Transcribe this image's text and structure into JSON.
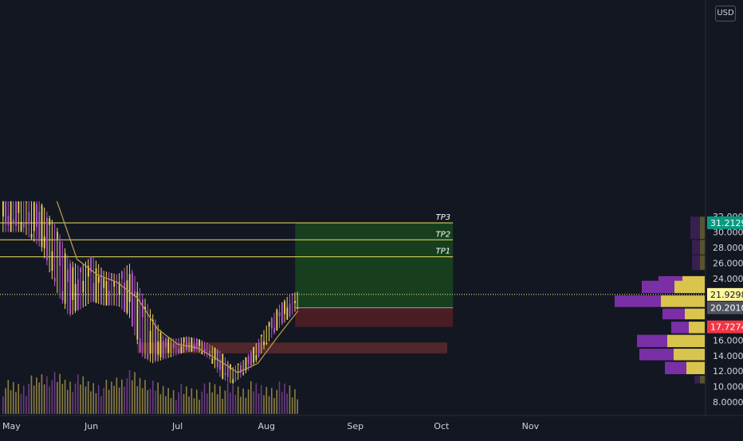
{
  "chart_data": {
    "type": "candlestick",
    "title": "",
    "price_axis": {
      "unit": "USD",
      "range": [
        7.0,
        34.0
      ],
      "ticks": [
        "8.0000",
        "10.0000",
        "12.0000",
        "14.0000",
        "16.0000",
        "18.0000",
        "20.0000",
        "22.0000",
        "24.0000",
        "26.0000",
        "28.0000",
        "30.0000",
        "32.0000"
      ]
    },
    "time_axis": {
      "labels": [
        "May",
        "Jun",
        "Jul",
        "Aug",
        "Sep",
        "Oct",
        "Nov"
      ],
      "label_dates": [
        "2021-05-01",
        "2021-06-01",
        "2021-07-01",
        "2021-08-01",
        "2021-09-01",
        "2021-10-01",
        "2021-11-01"
      ]
    },
    "price_badges": [
      {
        "value": "31.2129",
        "color": "#089981",
        "text_color": "#ffffff"
      },
      {
        "value": "21.9298",
        "color": "#fff59d",
        "text_color": "#131722"
      },
      {
        "value": "20.2010",
        "color": "#50535e",
        "text_color": "#ffffff"
      },
      {
        "value": "17.7274",
        "color": "#f23645",
        "text_color": "#ffffff"
      }
    ],
    "take_profit_lines": [
      {
        "label": "TP1",
        "price": 26.8
      },
      {
        "label": "TP2",
        "price": 29.0
      },
      {
        "label": "TP3",
        "price": 31.2
      }
    ],
    "position": {
      "entry": 20.2,
      "target": 31.2,
      "stop": 17.73,
      "start_date": "2021-08-11",
      "end_date": "2021-10-05"
    },
    "demand_zone": {
      "low": 14.3,
      "high": 15.7,
      "start_date": "2021-06-17",
      "end_date": "2021-10-03"
    },
    "current_price": 21.93,
    "price_series": {
      "dates": [
        "2021-05-02",
        "2021-05-08",
        "2021-05-14",
        "2021-05-20",
        "2021-05-24",
        "2021-05-28",
        "2021-06-01",
        "2021-06-05",
        "2021-06-10",
        "2021-06-14",
        "2021-06-18",
        "2021-06-22",
        "2021-06-26",
        "2021-06-30",
        "2021-07-04",
        "2021-07-08",
        "2021-07-12",
        "2021-07-16",
        "2021-07-20",
        "2021-07-24",
        "2021-07-28",
        "2021-08-01",
        "2021-08-05",
        "2021-08-09",
        "2021-08-12"
      ],
      "highs": [
        34,
        34,
        34,
        30.5,
        26.5,
        25.5,
        27,
        25,
        24.5,
        26,
        22.5,
        19.5,
        16.5,
        16.2,
        16.5,
        16.2,
        15.5,
        14.5,
        12.5,
        13.5,
        15.5,
        18,
        20.5,
        22,
        22.3
      ],
      "lows": [
        30,
        30,
        28,
        22,
        19,
        20,
        21,
        20.5,
        20.5,
        19,
        14,
        13,
        13.5,
        14,
        14.5,
        14.5,
        13.5,
        11,
        10.3,
        11.5,
        13,
        15.5,
        17.5,
        19,
        20.2
      ],
      "closes": [
        32,
        32,
        30,
        24,
        22,
        22.5,
        24,
        22,
        22,
        22,
        16,
        15,
        15,
        15.5,
        15.5,
        15.2,
        14.5,
        12,
        11.5,
        13,
        15,
        17.5,
        19.5,
        21,
        21.9
      ]
    },
    "moving_average": {
      "dates": [
        "2021-05-20",
        "2021-05-27",
        "2021-06-03",
        "2021-06-10",
        "2021-06-17",
        "2021-06-24",
        "2021-07-01",
        "2021-07-08",
        "2021-07-15",
        "2021-07-22",
        "2021-07-29",
        "2021-08-05",
        "2021-08-12"
      ],
      "values": [
        34,
        26.5,
        24.5,
        23.5,
        21.5,
        17.5,
        15.5,
        15.0,
        13.5,
        11.8,
        13.0,
        16.5,
        19.8
      ]
    },
    "volume_profile": [
      {
        "price_low": 24.3,
        "price_high": 23.0,
        "up": 0.28,
        "down": 0.3
      },
      {
        "price_low": 22.0,
        "price_high": 23.7,
        "up": 0.38,
        "down": 0.41
      },
      {
        "price_low": 20.2,
        "price_high": 21.8,
        "up": 0.55,
        "down": 0.58
      },
      {
        "price_low": 18.6,
        "price_high": 20.1,
        "up": 0.25,
        "down": 0.28
      },
      {
        "price_low": 16.8,
        "price_high": 18.4,
        "up": 0.2,
        "down": 0.22
      },
      {
        "price_low": 15.0,
        "price_high": 16.7,
        "up": 0.47,
        "down": 0.38
      },
      {
        "price_low": 13.3,
        "price_high": 14.9,
        "up": 0.39,
        "down": 0.43
      },
      {
        "price_low": 11.5,
        "price_high": 13.2,
        "up": 0.23,
        "down": 0.27
      },
      {
        "price_low": 10.3,
        "price_high": 11.4,
        "up": 0.06,
        "down": 0.07
      },
      {
        "price_low": 25.0,
        "price_high": 27.0,
        "up": 0.06,
        "down": 0.1
      },
      {
        "price_low": 27.0,
        "price_high": 29.0,
        "up": 0.06,
        "down": 0.1
      },
      {
        "price_low": 29.0,
        "price_high": 32.0,
        "up": 0.06,
        "down": 0.12
      }
    ],
    "colors": {
      "background": "#131722",
      "candle_up": "#f0d55a",
      "candle_down": "#b85ad0",
      "ma": "#c2a047",
      "tp_line": "#e9e25f",
      "profit_zone": "#173f1e",
      "loss_zone": "#4a1c24",
      "demand_zone": "#5c2a2d",
      "profile_up": "#d9c44d",
      "profile_down": "#7b2fa6"
    }
  }
}
